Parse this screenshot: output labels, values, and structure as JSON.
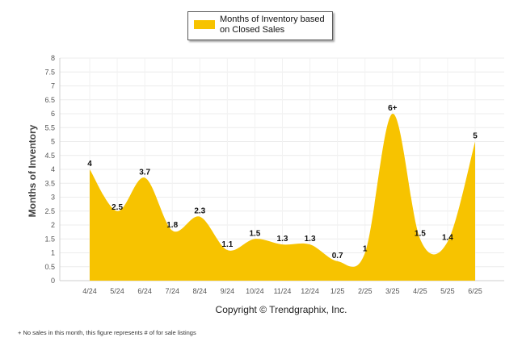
{
  "legend": {
    "label": "Months of Inventory based on Closed Sales"
  },
  "copyright": "Copyright © Trendgraphix, Inc.",
  "footnote": "+ No sales in this month, this figure represents # of for sale listings",
  "chart_data": {
    "type": "area",
    "categories": [
      "4/24",
      "5/24",
      "6/24",
      "7/24",
      "8/24",
      "9/24",
      "10/24",
      "11/24",
      "12/24",
      "1/25",
      "2/25",
      "3/25",
      "4/25",
      "5/25",
      "6/25"
    ],
    "series": [
      {
        "name": "Months of Inventory based on Closed Sales",
        "values": [
          4,
          2.5,
          3.7,
          1.8,
          2.3,
          1.1,
          1.5,
          1.3,
          1.3,
          0.7,
          1,
          6,
          1.5,
          1.4,
          5
        ],
        "labels": [
          "4",
          "2.5",
          "3.7",
          "1.8",
          "2.3",
          "1.1",
          "1.5",
          "1.3",
          "1.3",
          "0.7",
          "1",
          "6+",
          "1.5",
          "1.4",
          "5"
        ]
      }
    ],
    "ylabel": "Months of Inventory",
    "xlabel": "",
    "ylim": [
      0,
      8
    ],
    "yticks": [
      "0",
      "0.5",
      "1",
      "1.5",
      "2",
      "2.5",
      "3",
      "3.5",
      "4",
      "4.5",
      "5",
      "5.5",
      "6",
      "6.5",
      "7",
      "7.5",
      "8"
    ],
    "grid": true,
    "color": "#f7c300"
  }
}
